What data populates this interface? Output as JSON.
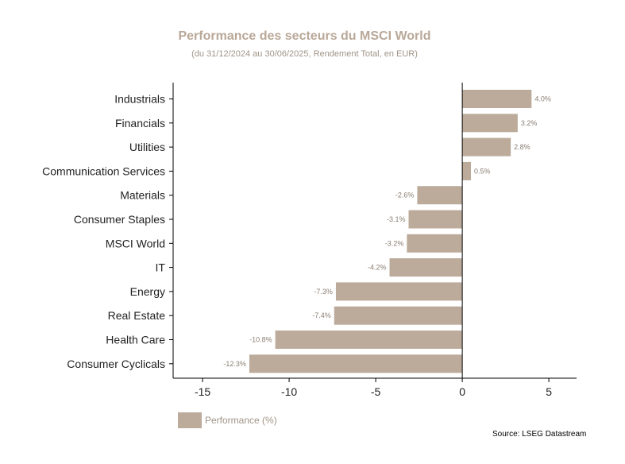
{
  "chart_data": {
    "type": "bar",
    "orientation": "horizontal",
    "title": "Performance des secteurs du MSCI World",
    "subtitle": "(du 31/12/2024 au 30/06/2025, Rendement Total, en EUR)",
    "categories": [
      "Industrials",
      "Financials",
      "Utilities",
      "Communication Services",
      "Materials",
      "Consumer Staples",
      "MSCI World",
      "IT",
      "Energy",
      "Real Estate",
      "Health Care",
      "Consumer Cyclicals"
    ],
    "series": [
      {
        "name": "Performance (%)",
        "values": [
          4.0,
          3.2,
          2.8,
          0.5,
          -2.6,
          -3.1,
          -3.2,
          -4.2,
          -7.3,
          -7.4,
          -10.8,
          -12.3
        ],
        "labels": [
          "4.0%",
          "3.2%",
          "2.8%",
          "0.5%",
          "-2.6%",
          "-3.1%",
          "-3.2%",
          "-4.2%",
          "-7.3%",
          "-7.4%",
          "-10.8%",
          "-12.3%"
        ]
      }
    ],
    "xlim": [
      -16.7,
      6.6
    ],
    "xticks": [
      -15,
      -10,
      -5,
      0,
      5
    ],
    "xtick_labels": [
      "-15",
      "-10",
      "-5",
      "0",
      "5"
    ],
    "xlabel": "",
    "ylabel": "",
    "grid": false,
    "legend": "bottom-left",
    "colors": {
      "bar": "#bcab9b",
      "axis": "#000000"
    }
  },
  "source": "Source: LSEG Datastream"
}
